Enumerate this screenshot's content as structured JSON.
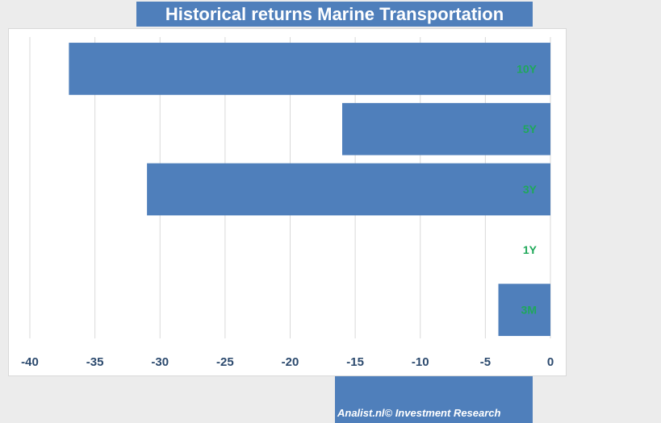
{
  "title": "Historical returns Marine Transportation",
  "footer": "Analist.nl© Investment Research",
  "colors": {
    "bar": "#4f7fbb",
    "label": "#1fa85a",
    "tick": "#2c4a6e",
    "grid": "#d9d9d9"
  },
  "chart_data": {
    "type": "bar",
    "orientation": "horizontal",
    "categories": [
      "10Y",
      "5Y",
      "3Y",
      "1Y",
      "3M"
    ],
    "values": [
      -37,
      -16,
      -31,
      0,
      -4
    ],
    "xlim": [
      -40,
      0
    ],
    "xticks": [
      -40,
      -35,
      -30,
      -25,
      -20,
      -15,
      -10,
      -5,
      0
    ],
    "grid": true,
    "legend": "none"
  }
}
